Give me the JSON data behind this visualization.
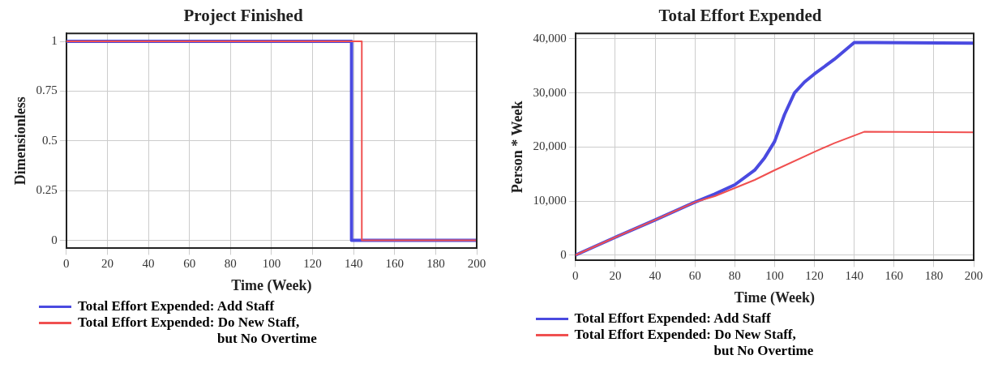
{
  "chart_data": [
    {
      "type": "step",
      "title": "Project Finished",
      "xlabel": "Time (Week)",
      "ylabel": "Dimensionless",
      "xlim": [
        0,
        200
      ],
      "ylim": [
        -0.04,
        1.04
      ],
      "xticks": [
        0,
        20,
        40,
        60,
        80,
        100,
        120,
        140,
        160,
        180,
        200
      ],
      "yticks": [
        0,
        0.25,
        0.5,
        0.75,
        1
      ],
      "grid": true,
      "legend": "bottom",
      "series": [
        {
          "name": "Total Effort Expended: Add Staff",
          "color": "#4a4ae0",
          "x": [
            0,
            139,
            200
          ],
          "values": [
            1,
            0,
            0
          ]
        },
        {
          "name": "Total Effort Expended: Do New Staff, but No Overtime",
          "color": "#f05050",
          "x": [
            0,
            144,
            200
          ],
          "values": [
            1,
            0,
            0
          ]
        }
      ]
    },
    {
      "type": "line",
      "title": "Total Effort Expended",
      "xlabel": "Time (Week)",
      "ylabel": "Person * Week",
      "xlim": [
        0,
        200
      ],
      "ylim": [
        -1000,
        41000
      ],
      "xticks": [
        0,
        20,
        40,
        60,
        80,
        100,
        120,
        140,
        160,
        180,
        200
      ],
      "yticks": [
        {
          "value": 0,
          "label": "0"
        },
        {
          "value": 10000,
          "label": "10,000"
        },
        {
          "value": 20000,
          "label": "20,000"
        },
        {
          "value": 30000,
          "label": "30,000"
        },
        {
          "value": 40000,
          "label": "40,000"
        }
      ],
      "grid": true,
      "legend": "bottom",
      "series": [
        {
          "name": "Total Effort Expended: Add Staff",
          "color": "#4a4ae0",
          "x": [
            0,
            20,
            40,
            60,
            70,
            80,
            90,
            95,
            100,
            105,
            110,
            115,
            120,
            130,
            140,
            150,
            200
          ],
          "values": [
            0,
            3300,
            6500,
            9800,
            11300,
            13000,
            15700,
            18000,
            21000,
            26000,
            30000,
            32000,
            33500,
            36200,
            39300,
            39300,
            39200
          ]
        },
        {
          "name": "Total Effort Expended: Do New Staff, but No Overtime",
          "color": "#f05050",
          "x": [
            0,
            20,
            40,
            60,
            70,
            80,
            90,
            100,
            120,
            130,
            145,
            200
          ],
          "values": [
            0,
            3300,
            6500,
            9800,
            10900,
            12400,
            13900,
            15700,
            19100,
            20700,
            22800,
            22700
          ]
        }
      ]
    }
  ]
}
